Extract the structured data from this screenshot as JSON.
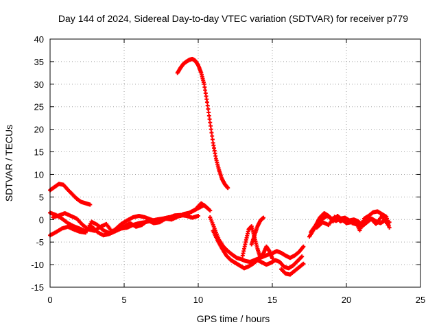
{
  "chart_data": {
    "type": "scatter",
    "title": "Day 144 of 2024, Sidereal Day-to-day VTEC variation (SDTVAR) for receiver p779",
    "xlabel": "GPS time / hours",
    "ylabel": "SDTVAR / TECUs",
    "xlim": [
      0,
      25
    ],
    "ylim": [
      -15,
      40
    ],
    "xticks": [
      0,
      5,
      10,
      15,
      20,
      25
    ],
    "yticks": [
      -15,
      -10,
      -5,
      0,
      5,
      10,
      15,
      20,
      25,
      30,
      35,
      40
    ],
    "grid": true,
    "marker_color": "#ff0000",
    "series": [
      {
        "name": "arc-early-high",
        "x": [
          0.0,
          0.3,
          0.6,
          0.9,
          1.2,
          1.5,
          1.8,
          2.1,
          2.4,
          2.7
        ],
        "y": [
          6.5,
          7.2,
          7.9,
          7.7,
          6.6,
          5.6,
          4.6,
          3.9,
          3.6,
          3.3
        ]
      },
      {
        "name": "arc-morning-a",
        "x": [
          0.0,
          0.4,
          0.8,
          1.2,
          1.6,
          2.0,
          2.4,
          2.8,
          3.2,
          3.6,
          4.0,
          4.4,
          4.8,
          5.2,
          5.6,
          6.0,
          6.4,
          6.8,
          7.2,
          7.6,
          8.0,
          8.4,
          8.8,
          9.2,
          9.6,
          10.0,
          10.4,
          10.8
        ],
        "y": [
          1.5,
          1.0,
          0.2,
          -0.8,
          -1.5,
          -2.0,
          -2.6,
          -1.5,
          -2.8,
          -3.5,
          -3.2,
          -2.6,
          -2.0,
          -1.8,
          -1.2,
          -0.8,
          -0.6,
          -0.3,
          0.0,
          0.2,
          0.5,
          0.6,
          0.8,
          1.2,
          1.8,
          2.5,
          3.2,
          2.0
        ]
      },
      {
        "name": "arc-morning-b",
        "x": [
          0.0,
          0.4,
          0.8,
          1.2,
          1.6,
          2.0,
          2.4,
          2.8,
          3.2,
          3.6,
          4.0,
          4.4,
          4.8,
          5.2,
          5.6,
          6.0,
          6.4,
          6.8,
          7.2,
          7.6,
          8.0,
          8.4,
          8.8,
          9.2,
          9.6,
          10.0
        ],
        "y": [
          -3.5,
          -2.8,
          -2.0,
          -1.6,
          -2.2,
          -2.7,
          -2.9,
          -0.5,
          -1.2,
          -2.4,
          -3.0,
          -2.2,
          -1.0,
          -0.2,
          0.5,
          0.8,
          0.5,
          0.0,
          -0.4,
          -0.1,
          0.4,
          0.9,
          1.0,
          0.8,
          0.4,
          0.8
        ]
      },
      {
        "name": "arc-morning-c",
        "x": [
          0.2,
          0.6,
          1.0,
          1.4,
          1.8,
          2.2,
          2.6,
          3.0,
          3.4,
          3.8,
          4.2,
          4.6,
          5.0,
          5.4,
          5.8,
          6.2,
          6.6,
          7.0,
          7.4,
          7.8,
          8.2,
          8.6,
          9.0,
          9.4,
          9.8,
          10.2,
          10.6
        ],
        "y": [
          0.5,
          0.9,
          1.4,
          0.8,
          0.2,
          -1.2,
          -2.2,
          -2.5,
          -1.6,
          -1.0,
          -2.8,
          -2.0,
          -1.5,
          -0.8,
          -1.6,
          -1.2,
          -0.2,
          -0.8,
          -0.6,
          0.2,
          0.0,
          0.6,
          1.2,
          1.5,
          2.2,
          3.6,
          2.6
        ]
      },
      {
        "name": "arc-peak",
        "x": [
          8.6,
          8.8,
          9.0,
          9.2,
          9.4,
          9.6,
          9.8,
          10.0,
          10.2,
          10.4,
          10.6,
          10.8,
          11.0,
          11.2,
          11.4,
          11.6,
          11.8,
          12.0
        ],
        "y": [
          32.5,
          33.6,
          34.5,
          35.0,
          35.4,
          35.6,
          35.2,
          34.2,
          32.5,
          30.0,
          26.0,
          21.5,
          17.0,
          13.5,
          11.0,
          9.0,
          7.8,
          7.0
        ]
      },
      {
        "name": "arc-drop-a",
        "x": [
          10.8,
          11.1,
          11.4,
          11.7,
          12.0,
          12.3,
          12.6,
          12.9,
          13.2,
          13.5,
          13.8,
          14.1,
          14.4,
          14.7,
          15.0,
          15.3,
          15.6,
          15.9,
          16.2,
          16.5,
          16.8,
          17.1
        ],
        "y": [
          0.5,
          -2.0,
          -4.5,
          -6.0,
          -7.0,
          -7.8,
          -8.5,
          -8.8,
          -9.2,
          -9.4,
          -9.0,
          -8.6,
          -8.2,
          -7.8,
          -7.5,
          -7.0,
          -7.4,
          -8.0,
          -8.5,
          -8.0,
          -7.2,
          -6.0
        ]
      },
      {
        "name": "arc-drop-b",
        "x": [
          11.0,
          11.3,
          11.6,
          11.9,
          12.2,
          12.5,
          12.8,
          13.1,
          13.4,
          13.7,
          14.0,
          14.3,
          14.6,
          14.9,
          15.2,
          15.5,
          15.8,
          16.1,
          16.4,
          16.7,
          17.0
        ],
        "y": [
          -2.5,
          -4.6,
          -6.4,
          -8.0,
          -9.0,
          -9.6,
          -10.2,
          -10.8,
          -10.4,
          -9.8,
          -9.0,
          -9.5,
          -10.0,
          -9.6,
          -9.0,
          -9.4,
          -10.5,
          -10.8,
          -10.2,
          -9.2,
          -8.2
        ]
      },
      {
        "name": "arc-spike",
        "x": [
          13.0,
          13.2,
          13.4,
          13.6,
          13.8,
          14.0,
          14.2,
          14.4,
          14.6,
          14.8,
          15.0
        ],
        "y": [
          -8.0,
          -5.0,
          -2.2,
          -1.5,
          -4.0,
          -6.5,
          -8.5,
          -7.5,
          -6.0,
          -7.0,
          -8.6
        ]
      },
      {
        "name": "arc-spike-b",
        "x": [
          13.6,
          13.8,
          14.0,
          14.2,
          14.4
        ],
        "y": [
          -5.5,
          -3.5,
          -1.5,
          -0.2,
          0.4
        ]
      },
      {
        "name": "arc-late-low",
        "x": [
          15.6,
          15.9,
          16.2,
          16.5,
          16.8,
          17.1
        ],
        "y": [
          -11.0,
          -12.0,
          -12.2,
          -11.4,
          -10.6,
          -9.8
        ]
      },
      {
        "name": "arc-evening-a",
        "x": [
          17.5,
          17.8,
          18.1,
          18.4,
          18.7,
          19.0,
          19.3,
          19.6,
          19.9,
          20.2,
          20.5,
          20.8,
          21.1,
          21.4,
          21.7,
          22.0,
          22.3,
          22.6,
          22.9
        ],
        "y": [
          -3.8,
          -2.2,
          -0.8,
          0.2,
          0.8,
          0.2,
          -0.3,
          0.2,
          0.4,
          -0.2,
          0.0,
          -0.4,
          -1.4,
          -0.6,
          0.2,
          -0.4,
          -0.8,
          -0.2,
          -0.6
        ]
      },
      {
        "name": "arc-evening-b",
        "x": [
          17.6,
          17.9,
          18.2,
          18.5,
          18.8,
          19.1,
          19.4,
          19.7,
          20.0,
          20.3,
          20.6,
          20.9,
          21.2,
          21.5,
          21.8,
          22.1,
          22.4,
          22.7,
          22.9
        ],
        "y": [
          -2.8,
          -1.4,
          0.4,
          1.4,
          0.8,
          -0.4,
          0.8,
          0.0,
          -0.8,
          -0.6,
          -0.2,
          -2.4,
          0.2,
          0.8,
          1.6,
          1.8,
          1.2,
          0.6,
          -1.8
        ]
      },
      {
        "name": "arc-evening-c",
        "x": [
          18.0,
          18.4,
          18.8,
          19.2,
          19.6,
          20.0,
          20.4,
          20.8,
          21.2,
          21.6,
          22.0,
          22.4,
          22.8
        ],
        "y": [
          -1.8,
          -0.6,
          -1.2,
          0.6,
          -0.4,
          0.2,
          -0.8,
          -1.2,
          -0.4,
          0.4,
          -1.0,
          0.8,
          -1.2
        ]
      }
    ]
  }
}
